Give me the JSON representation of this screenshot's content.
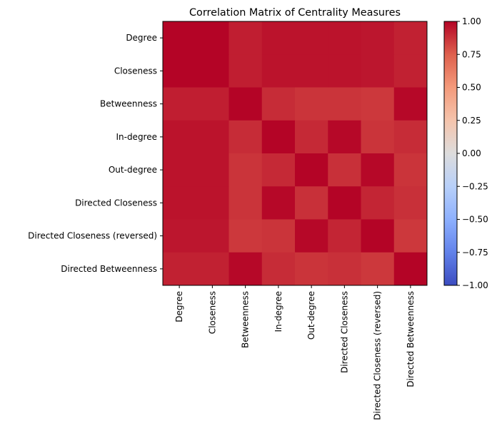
{
  "chart_data": {
    "type": "heatmap",
    "title": "Correlation Matrix of Centrality Measures",
    "row_labels": [
      "Degree",
      "Closeness",
      "Betweenness",
      "In-degree",
      "Out-degree",
      "Directed Closeness",
      "Directed Closeness (reversed)",
      "Directed Betweenness"
    ],
    "col_labels": [
      "Degree",
      "Closeness",
      "Betweenness",
      "In-degree",
      "Out-degree",
      "Directed Closeness",
      "Directed Closeness (reversed)",
      "Directed Betweenness"
    ],
    "values": [
      [
        1.0,
        1.0,
        0.93,
        0.96,
        0.96,
        0.96,
        0.95,
        0.92
      ],
      [
        1.0,
        1.0,
        0.93,
        0.96,
        0.96,
        0.96,
        0.95,
        0.92
      ],
      [
        0.93,
        0.93,
        1.0,
        0.89,
        0.87,
        0.87,
        0.86,
        0.99
      ],
      [
        0.96,
        0.96,
        0.89,
        1.0,
        0.9,
        0.99,
        0.87,
        0.89
      ],
      [
        0.96,
        0.96,
        0.87,
        0.9,
        1.0,
        0.88,
        0.99,
        0.87
      ],
      [
        0.96,
        0.96,
        0.87,
        0.99,
        0.88,
        1.0,
        0.91,
        0.88
      ],
      [
        0.95,
        0.95,
        0.86,
        0.87,
        0.99,
        0.91,
        1.0,
        0.86
      ],
      [
        0.92,
        0.92,
        0.99,
        0.89,
        0.87,
        0.88,
        0.86,
        1.0
      ]
    ],
    "colormap": "coolwarm",
    "vmin": -1.0,
    "vmax": 1.0,
    "colorbar_ticks": [
      "1.00",
      "0.75",
      "0.50",
      "0.25",
      "0.00",
      "−0.25",
      "−0.50",
      "−0.75",
      "−1.00"
    ],
    "colorbar_tick_values": [
      1.0,
      0.75,
      0.5,
      0.25,
      0.0,
      -0.25,
      -0.5,
      -0.75,
      -1.0
    ]
  }
}
